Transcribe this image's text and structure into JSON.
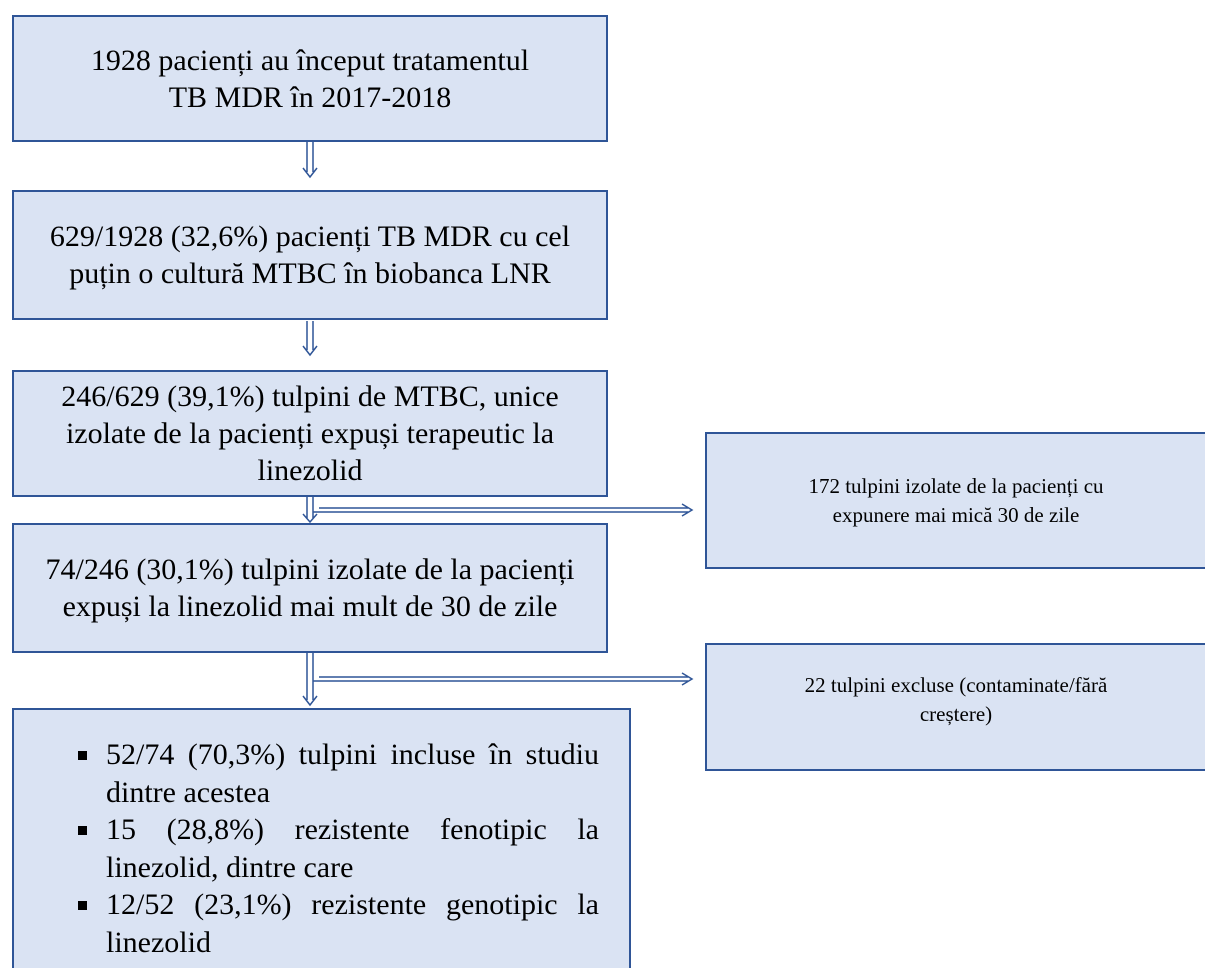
{
  "steps": [
    {
      "lines": [
        "1928 pacienți au început tratamentul",
        "TB MDR în 2017-2018"
      ]
    },
    {
      "lines": [
        "629/1928 (32,6%) pacienți TB MDR cu cel",
        "puțin o cultură MTBC în biobanca LNR"
      ]
    },
    {
      "lines": [
        "246/629 (39,1%) tulpini de MTBC, unice",
        "izolate de la pacienți expuși terapeutic la",
        "linezolid"
      ]
    },
    {
      "lines": [
        "74/246 (30,1%) tulpini izolate de la pacienți",
        "expuși la linezolid mai mult de 30 de zile"
      ]
    }
  ],
  "exclusions": [
    {
      "lines": [
        "172 tulpini izolate de la pacienți cu",
        "expunere mai mică 30 de zile"
      ]
    },
    {
      "lines": [
        "22 tulpini excluse (contaminate/fără",
        "creștere)"
      ]
    }
  ],
  "results": {
    "items": [
      "52/74 (70,3%) tulpini incluse în studiu dintre acestea",
      "15 (28,8%) rezistente fenotipic la linezolid, dintre care",
      "12/52 (23,1%) rezistente genotipic la linezolid"
    ]
  }
}
